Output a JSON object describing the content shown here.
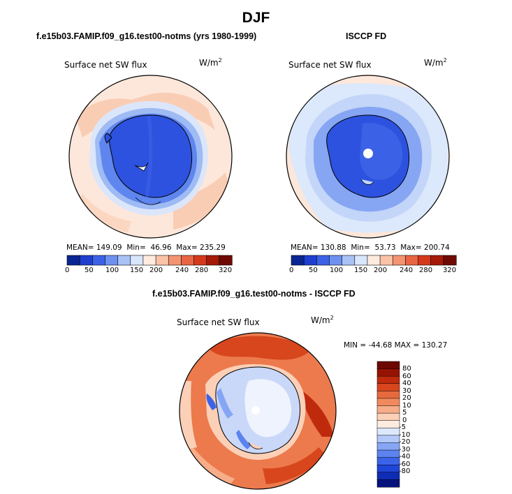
{
  "season_title": "DJF",
  "colors": {
    "abs_scale": [
      "#0a2592",
      "#1f3fce",
      "#3b62e6",
      "#6e90ef",
      "#a9c2f5",
      "#d8e6fb",
      "#fdebe0",
      "#fbc3a6",
      "#f49372",
      "#e86544",
      "#d4391c",
      "#a51a08",
      "#6e0a02"
    ],
    "diff_scale": [
      "#06137c",
      "#0e2cb5",
      "#1f45d8",
      "#3b63e8",
      "#5c83ef",
      "#86a6f4",
      "#b3c9f8",
      "#dde8fc",
      "#fdebe0",
      "#fcd0b7",
      "#f7ad88",
      "#f08a5e",
      "#e66a3c",
      "#d8461d",
      "#bf2a0d",
      "#961304",
      "#6b0902"
    ],
    "ice_sheet": "#2d52df",
    "ocean_model": "#f8d6c2",
    "ocean_obs": "#dce8fb",
    "diff_ocean": "#ec7a4d",
    "diff_ice": "#c9d8f9"
  },
  "panels": {
    "model": {
      "title": "f.e15b03.FAMIP.f09_g16.test00-notms (yrs 1980-1999)",
      "variable": "Surface net SW flux",
      "units": "W/m",
      "units_exp": "2",
      "mean_label": "MEAN=",
      "mean": "149.09",
      "min_label": "Min=",
      "min": "46.96",
      "max_label": "Max=",
      "max": "235.29"
    },
    "obs": {
      "title": "ISCCP FD",
      "variable": "Surface net SW flux",
      "units": "W/m",
      "units_exp": "2",
      "mean_label": "MEAN=",
      "mean": "130.88",
      "min_label": "Min=",
      "min": "53.73",
      "max_label": "Max=",
      "max": "200.74"
    },
    "diff": {
      "title": "f.e15b03.FAMIP.f09_g16.test00-notms - ISCCP FD",
      "variable": "Surface net SW flux",
      "units": "W/m",
      "units_exp": "2",
      "stats_text": "MIN = -44.68 MAX = 130.27"
    }
  },
  "abs_colorbar_labels": [
    "0",
    "50",
    "100",
    "150",
    "200",
    "240",
    "280",
    "320"
  ],
  "diff_colorbar_labels": [
    "80",
    "60",
    "40",
    "30",
    "20",
    "10",
    "5",
    "0",
    "-5",
    "-10",
    "-20",
    "-30",
    "-40",
    "-60",
    "-80"
  ]
}
